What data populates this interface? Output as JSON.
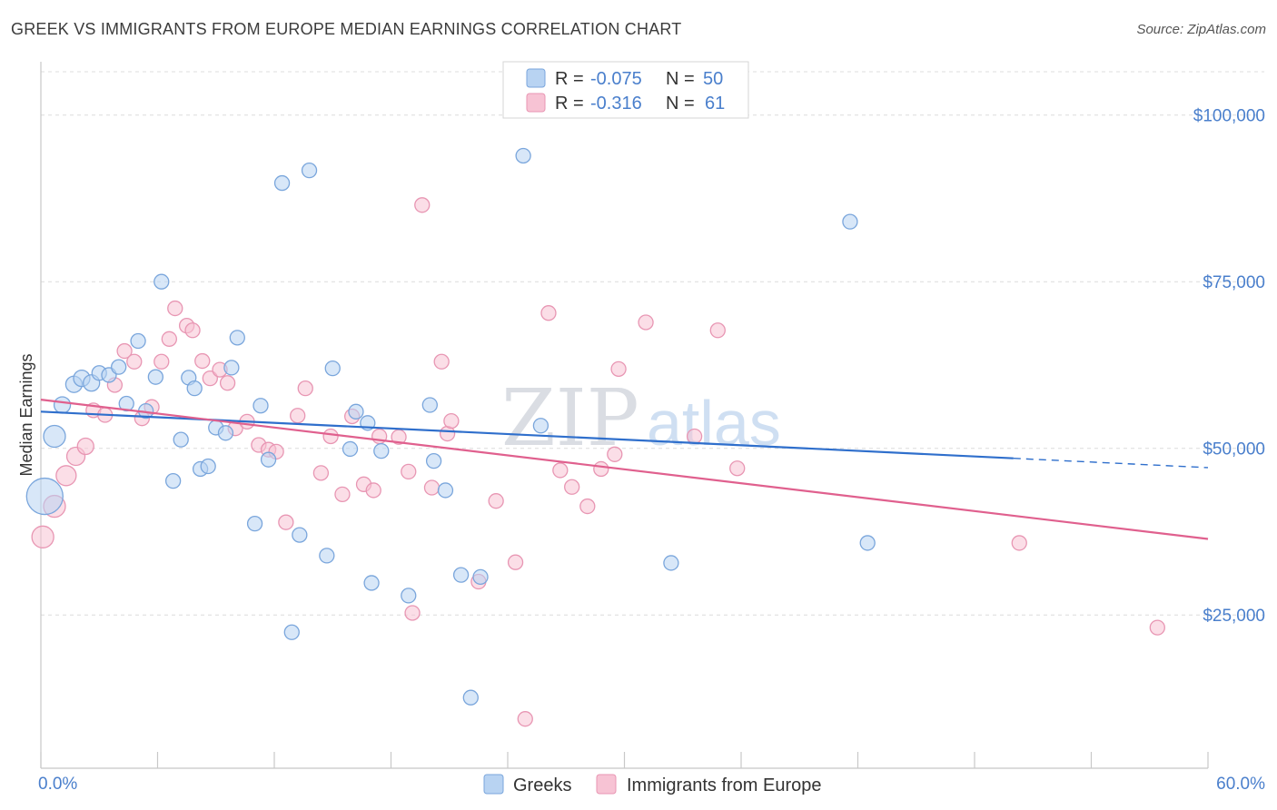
{
  "header": {
    "title": "GREEK VS IMMIGRANTS FROM EUROPE MEDIAN EARNINGS CORRELATION CHART",
    "source": "Source: ZipAtlas.com"
  },
  "watermark": {
    "zip": "ZIP",
    "atlas": "atlas"
  },
  "legend_top": {
    "rows": [
      {
        "r_label": "R =",
        "r_value": "-0.075",
        "n_label": "N =",
        "n_value": "50"
      },
      {
        "r_label": "R =",
        "r_value": "-0.316",
        "n_label": "N =",
        "n_value": "61"
      }
    ]
  },
  "legend_bottom": {
    "items": [
      {
        "label": "Greeks"
      },
      {
        "label": "Immigrants from Europe"
      }
    ]
  },
  "chart_data": {
    "type": "scatter",
    "title": "GREEK VS IMMIGRANTS FROM EUROPE MEDIAN EARNINGS CORRELATION CHART",
    "xlabel": "",
    "ylabel": "Median Earnings",
    "xlim": [
      0,
      60
    ],
    "ylim": [
      2000,
      108000
    ],
    "x_tick_labels": [
      {
        "value": 0,
        "label": "0.0%"
      },
      {
        "value": 60,
        "label": "60.0%"
      }
    ],
    "y_ticks": [
      {
        "value": 25000,
        "label": "$25,000"
      },
      {
        "value": 50000,
        "label": "$50,000"
      },
      {
        "value": 75000,
        "label": "$75,000"
      },
      {
        "value": 100000,
        "label": "$100,000"
      }
    ],
    "grid": true,
    "colors": {
      "greeks_fill": "#b8d3f2",
      "greeks_stroke": "#7aa6dc",
      "greeks_line": "#2f6fcc",
      "europe_fill": "#f7c3d4",
      "europe_stroke": "#e896b3",
      "europe_line": "#e0608e"
    },
    "series": [
      {
        "name": "Greeks",
        "r": -0.075,
        "n": 50,
        "trend": {
          "x0": 0,
          "y0": 55500,
          "x1": 50,
          "y1": 48500,
          "dashed_to_x": 60,
          "dashed_to_y": 47100
        },
        "points": [
          [
            0.2,
            42800,
            20
          ],
          [
            0.7,
            51800,
            12
          ],
          [
            1.1,
            56500,
            9
          ],
          [
            1.7,
            59600,
            9
          ],
          [
            2.1,
            60500,
            9
          ],
          [
            2.6,
            59800,
            9
          ],
          [
            3.0,
            61300,
            8
          ],
          [
            3.5,
            61000,
            8
          ],
          [
            4.0,
            62200,
            8
          ],
          [
            4.4,
            56700,
            8
          ],
          [
            5.0,
            66100,
            8
          ],
          [
            5.4,
            55600,
            8
          ],
          [
            5.9,
            60700,
            8
          ],
          [
            6.2,
            75000,
            8
          ],
          [
            6.8,
            45100,
            8
          ],
          [
            7.2,
            51300,
            8
          ],
          [
            7.6,
            60600,
            8
          ],
          [
            8.2,
            46900,
            8
          ],
          [
            8.6,
            47300,
            8
          ],
          [
            9.0,
            53100,
            8
          ],
          [
            9.5,
            52300,
            8
          ],
          [
            9.8,
            62100,
            8
          ],
          [
            10.1,
            66600,
            8
          ],
          [
            11.0,
            38700,
            8
          ],
          [
            11.3,
            56400,
            8
          ],
          [
            11.7,
            48300,
            8
          ],
          [
            12.4,
            89800,
            8
          ],
          [
            12.9,
            22400,
            8
          ],
          [
            13.3,
            37000,
            8
          ],
          [
            13.8,
            91700,
            8
          ],
          [
            14.7,
            33900,
            8
          ],
          [
            15.0,
            62000,
            8
          ],
          [
            15.9,
            49900,
            8
          ],
          [
            16.2,
            55500,
            8
          ],
          [
            17.0,
            29800,
            8
          ],
          [
            17.5,
            49600,
            8
          ],
          [
            18.9,
            27900,
            8
          ],
          [
            20.0,
            56500,
            8
          ],
          [
            20.2,
            48100,
            8
          ],
          [
            20.8,
            43700,
            8
          ],
          [
            21.6,
            31000,
            8
          ],
          [
            22.1,
            12600,
            8
          ],
          [
            22.6,
            30700,
            8
          ],
          [
            24.8,
            93900,
            8
          ],
          [
            25.7,
            53400,
            8
          ],
          [
            32.4,
            32800,
            8
          ],
          [
            41.6,
            84000,
            8
          ],
          [
            42.5,
            35800,
            8
          ],
          [
            7.9,
            59000,
            8
          ],
          [
            16.8,
            53800,
            8
          ]
        ]
      },
      {
        "name": "Immigrants from Europe",
        "r": -0.316,
        "n": 61,
        "trend": {
          "x0": 0,
          "y0": 57300,
          "x1": 60,
          "y1": 36400
        },
        "points": [
          [
            0.1,
            36700,
            12
          ],
          [
            0.7,
            41300,
            12
          ],
          [
            1.3,
            45900,
            11
          ],
          [
            1.8,
            48800,
            10
          ],
          [
            2.3,
            50300,
            9
          ],
          [
            2.7,
            55700,
            8
          ],
          [
            3.3,
            55000,
            8
          ],
          [
            3.8,
            59500,
            8
          ],
          [
            4.3,
            64600,
            8
          ],
          [
            4.8,
            63000,
            8
          ],
          [
            5.2,
            54500,
            8
          ],
          [
            5.7,
            56200,
            8
          ],
          [
            6.2,
            63000,
            8
          ],
          [
            6.6,
            66400,
            8
          ],
          [
            6.9,
            71000,
            8
          ],
          [
            7.5,
            68400,
            8
          ],
          [
            7.8,
            67700,
            8
          ],
          [
            8.3,
            63100,
            8
          ],
          [
            8.7,
            60500,
            8
          ],
          [
            9.2,
            61800,
            8
          ],
          [
            9.6,
            59800,
            8
          ],
          [
            10.0,
            53000,
            8
          ],
          [
            10.6,
            54000,
            8
          ],
          [
            11.2,
            50500,
            8
          ],
          [
            11.7,
            49800,
            8
          ],
          [
            12.1,
            49500,
            8
          ],
          [
            12.6,
            38900,
            8
          ],
          [
            13.2,
            54900,
            8
          ],
          [
            13.6,
            59000,
            8
          ],
          [
            14.4,
            46300,
            8
          ],
          [
            14.9,
            51800,
            8
          ],
          [
            15.5,
            43100,
            8
          ],
          [
            16.0,
            54800,
            8
          ],
          [
            16.6,
            44600,
            8
          ],
          [
            17.1,
            43700,
            8
          ],
          [
            17.4,
            51800,
            8
          ],
          [
            18.4,
            51700,
            8
          ],
          [
            18.9,
            46500,
            8
          ],
          [
            19.1,
            25300,
            8
          ],
          [
            19.6,
            86500,
            8
          ],
          [
            20.1,
            44100,
            8
          ],
          [
            20.6,
            63000,
            8
          ],
          [
            20.9,
            52200,
            8
          ],
          [
            21.1,
            54100,
            8
          ],
          [
            22.5,
            30000,
            8
          ],
          [
            23.4,
            42100,
            8
          ],
          [
            24.4,
            32900,
            8
          ],
          [
            24.9,
            9400,
            8
          ],
          [
            26.1,
            70300,
            8
          ],
          [
            26.7,
            46700,
            8
          ],
          [
            27.3,
            44200,
            8
          ],
          [
            28.1,
            41300,
            8
          ],
          [
            28.8,
            46900,
            8
          ],
          [
            29.5,
            49100,
            8
          ],
          [
            29.7,
            61900,
            8
          ],
          [
            31.1,
            68900,
            8
          ],
          [
            33.6,
            51800,
            8
          ],
          [
            34.8,
            67700,
            8
          ],
          [
            35.8,
            47000,
            8
          ],
          [
            50.3,
            35800,
            8
          ],
          [
            57.4,
            23100,
            8
          ]
        ]
      }
    ]
  }
}
